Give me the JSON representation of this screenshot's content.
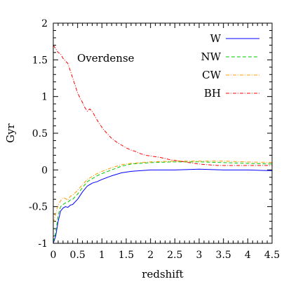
{
  "chart_data": {
    "type": "line",
    "title": "",
    "annotation": "Overdense",
    "xlabel": "redshift",
    "ylabel": "Gyr",
    "xlim": [
      0,
      4.5
    ],
    "ylim": [
      -1,
      2
    ],
    "xticks": [
      0,
      0.5,
      1,
      1.5,
      2,
      2.5,
      3,
      3.5,
      4,
      4.5
    ],
    "xtick_labels": [
      "0",
      "0.5",
      "1",
      "1.5",
      "2",
      "2.5",
      "3",
      "3.5",
      "4",
      "4.5"
    ],
    "yticks": [
      -1,
      -0.5,
      0,
      0.5,
      1,
      1.5,
      2
    ],
    "ytick_labels": [
      "-1",
      "-0.5",
      "0",
      "0.5",
      "1",
      "1.5",
      "2"
    ],
    "grid": false,
    "legend_position": "top-right",
    "series": [
      {
        "name": "W",
        "color": "#0000ff",
        "dash": "solid",
        "points": [
          [
            0.0,
            -1.0
          ],
          [
            0.05,
            -0.9
          ],
          [
            0.1,
            -0.7
          ],
          [
            0.15,
            -0.56
          ],
          [
            0.2,
            -0.52
          ],
          [
            0.25,
            -0.5
          ],
          [
            0.3,
            -0.51
          ],
          [
            0.35,
            -0.48
          ],
          [
            0.4,
            -0.47
          ],
          [
            0.5,
            -0.4
          ],
          [
            0.6,
            -0.3
          ],
          [
            0.7,
            -0.22
          ],
          [
            0.8,
            -0.18
          ],
          [
            0.9,
            -0.16
          ],
          [
            1.0,
            -0.13
          ],
          [
            1.2,
            -0.08
          ],
          [
            1.4,
            -0.04
          ],
          [
            1.6,
            -0.02
          ],
          [
            1.8,
            -0.01
          ],
          [
            2.0,
            0.0
          ],
          [
            2.5,
            0.0
          ],
          [
            3.0,
            0.01
          ],
          [
            3.5,
            0.0
          ],
          [
            4.0,
            0.0
          ],
          [
            4.5,
            -0.01
          ]
        ]
      },
      {
        "name": "NW",
        "color": "#00cc00",
        "dash": "long",
        "points": [
          [
            0.0,
            -0.98
          ],
          [
            0.05,
            -0.85
          ],
          [
            0.1,
            -0.62
          ],
          [
            0.15,
            -0.5
          ],
          [
            0.2,
            -0.47
          ],
          [
            0.25,
            -0.45
          ],
          [
            0.3,
            -0.44
          ],
          [
            0.35,
            -0.41
          ],
          [
            0.4,
            -0.4
          ],
          [
            0.5,
            -0.33
          ],
          [
            0.6,
            -0.24
          ],
          [
            0.7,
            -0.16
          ],
          [
            0.8,
            -0.12
          ],
          [
            0.9,
            -0.08
          ],
          [
            1.0,
            -0.05
          ],
          [
            1.2,
            0.0
          ],
          [
            1.4,
            0.05
          ],
          [
            1.6,
            0.08
          ],
          [
            1.8,
            0.09
          ],
          [
            2.0,
            0.1
          ],
          [
            2.5,
            0.11
          ],
          [
            3.0,
            0.11
          ],
          [
            3.5,
            0.1
          ],
          [
            4.0,
            0.09
          ],
          [
            4.5,
            0.08
          ]
        ]
      },
      {
        "name": "CW",
        "color": "#ff9900",
        "dash": "dashdot",
        "points": [
          [
            0.0,
            -0.72
          ],
          [
            0.05,
            -0.6
          ],
          [
            0.1,
            -0.48
          ],
          [
            0.15,
            -0.42
          ],
          [
            0.2,
            -0.38
          ],
          [
            0.25,
            -0.39
          ],
          [
            0.3,
            -0.41
          ],
          [
            0.35,
            -0.36
          ],
          [
            0.4,
            -0.34
          ],
          [
            0.5,
            -0.28
          ],
          [
            0.6,
            -0.2
          ],
          [
            0.7,
            -0.13
          ],
          [
            0.8,
            -0.09
          ],
          [
            0.9,
            -0.05
          ],
          [
            1.0,
            -0.02
          ],
          [
            1.2,
            0.03
          ],
          [
            1.4,
            0.07
          ],
          [
            1.6,
            0.09
          ],
          [
            1.8,
            0.1
          ],
          [
            2.0,
            0.11
          ],
          [
            2.5,
            0.12
          ],
          [
            3.0,
            0.12
          ],
          [
            3.5,
            0.12
          ],
          [
            4.0,
            0.11
          ],
          [
            4.5,
            0.1
          ]
        ]
      },
      {
        "name": "BH",
        "color": "#ff0000",
        "dash": "dashdot",
        "points": [
          [
            0.0,
            1.7
          ],
          [
            0.05,
            1.65
          ],
          [
            0.1,
            1.6
          ],
          [
            0.15,
            1.58
          ],
          [
            0.2,
            1.52
          ],
          [
            0.3,
            1.45
          ],
          [
            0.35,
            1.35
          ],
          [
            0.4,
            1.25
          ],
          [
            0.45,
            1.15
          ],
          [
            0.5,
            1.05
          ],
          [
            0.55,
            0.98
          ],
          [
            0.6,
            0.92
          ],
          [
            0.65,
            0.85
          ],
          [
            0.7,
            0.8
          ],
          [
            0.75,
            0.83
          ],
          [
            0.8,
            0.8
          ],
          [
            0.85,
            0.74
          ],
          [
            0.9,
            0.68
          ],
          [
            1.0,
            0.58
          ],
          [
            1.1,
            0.5
          ],
          [
            1.2,
            0.43
          ],
          [
            1.3,
            0.38
          ],
          [
            1.4,
            0.34
          ],
          [
            1.5,
            0.3
          ],
          [
            1.6,
            0.27
          ],
          [
            1.7,
            0.25
          ],
          [
            1.8,
            0.22
          ],
          [
            1.9,
            0.2
          ],
          [
            2.0,
            0.19
          ],
          [
            2.2,
            0.17
          ],
          [
            2.4,
            0.14
          ],
          [
            2.6,
            0.12
          ],
          [
            2.8,
            0.1
          ],
          [
            3.0,
            0.08
          ],
          [
            3.2,
            0.07
          ],
          [
            3.4,
            0.06
          ],
          [
            3.6,
            0.06
          ],
          [
            3.8,
            0.06
          ],
          [
            4.0,
            0.06
          ],
          [
            4.2,
            0.06
          ],
          [
            4.5,
            0.06
          ]
        ]
      }
    ]
  }
}
